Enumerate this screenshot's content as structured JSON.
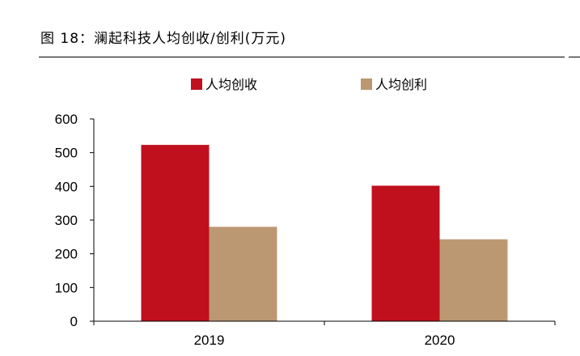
{
  "figure_title": "图 18：澜起科技人均创收/创利(万元)",
  "chart_data": {
    "type": "bar",
    "categories": [
      "2019",
      "2020"
    ],
    "series": [
      {
        "name": "人均创收",
        "values": [
          523,
          402
        ],
        "color": "#C0101E"
      },
      {
        "name": "人均创利",
        "values": [
          280,
          243
        ],
        "color": "#BC9872"
      }
    ],
    "ylim": [
      0,
      600
    ],
    "yticks": [
      "0",
      "100",
      "200",
      "300",
      "400",
      "500",
      "600"
    ],
    "legend": "top",
    "grid": false
  }
}
